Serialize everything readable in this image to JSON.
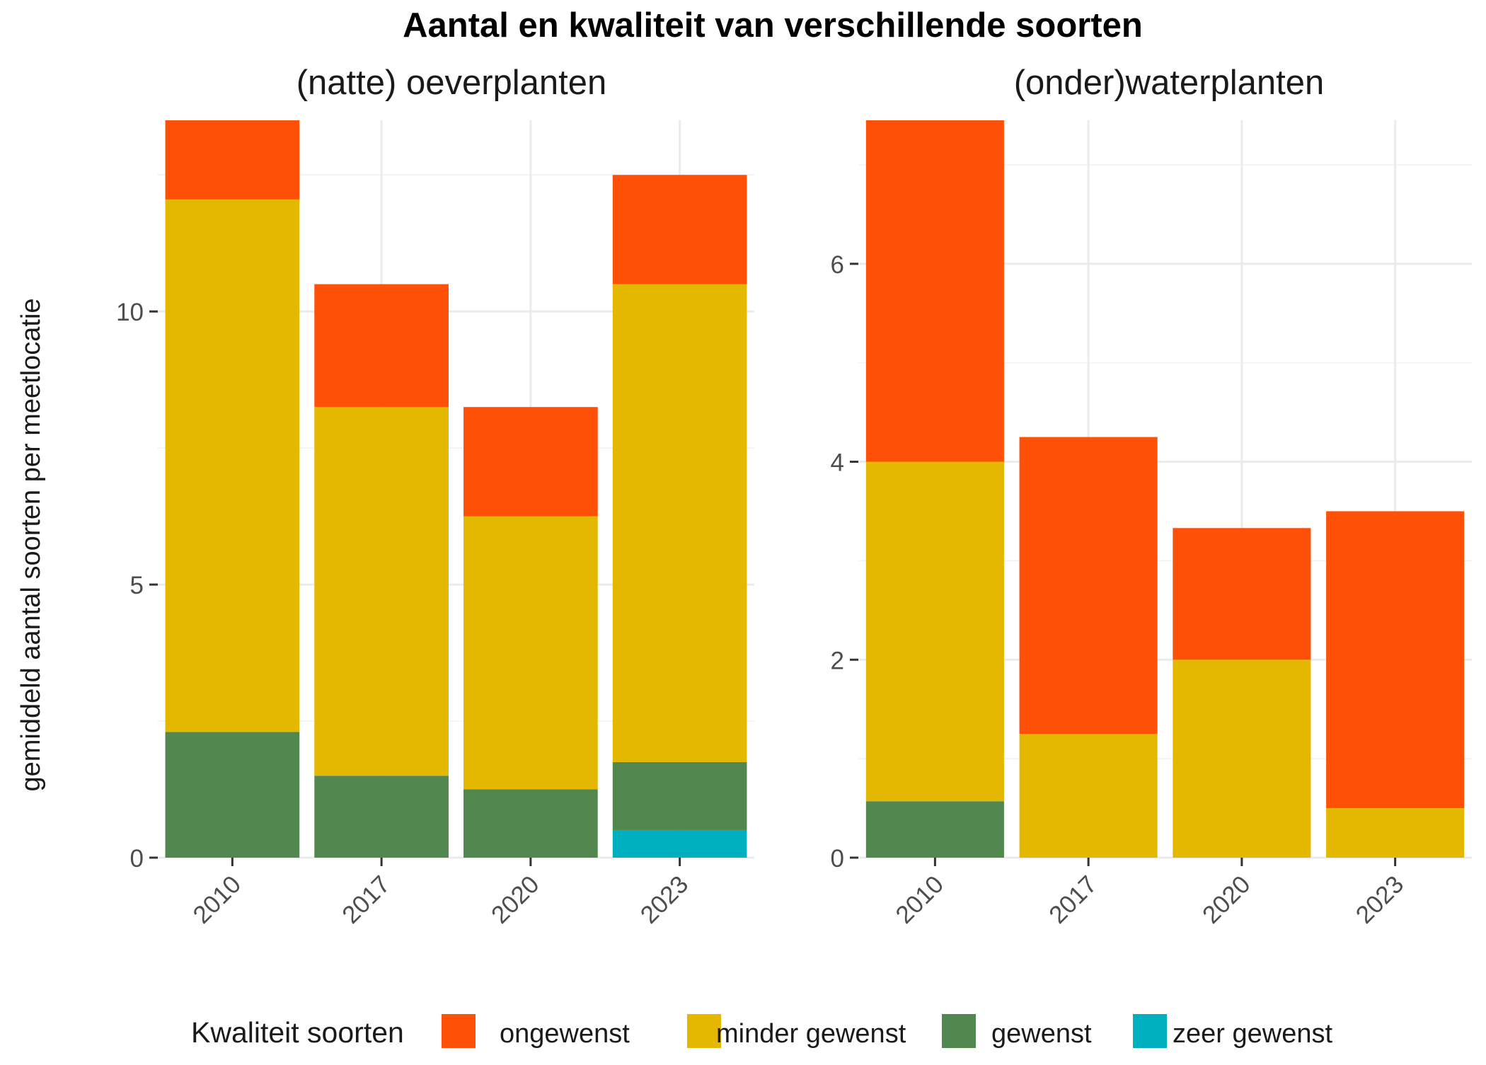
{
  "chart_data": {
    "type": "bar",
    "stacked": true,
    "title": "Aantal en kwaliteit van verschillende soorten",
    "ylabel": "gemiddeld aantal soorten per meetlocatie",
    "xlabel": "",
    "grid": true,
    "legend": {
      "title": "Kwaliteit soorten",
      "position": "bottom",
      "items": [
        {
          "label": "ongewenst",
          "color": "#FF5008"
        },
        {
          "label": "minder gewenst",
          "color": "#E4B800"
        },
        {
          "label": "gewenst",
          "color": "#52884F"
        },
        {
          "label": "zeer gewenst",
          "color": "#00B0BE"
        }
      ]
    },
    "panels": [
      {
        "title": "(natte) oeverplanten",
        "categories": [
          "2010",
          "2017",
          "2020",
          "2023"
        ],
        "ylim": [
          0,
          13.5
        ],
        "yticks": [
          0,
          5,
          10
        ],
        "ytick_labels": [
          "0",
          "5",
          "10"
        ],
        "series": [
          {
            "name": "zeer gewenst",
            "values": [
              0,
              0,
              0,
              0.5
            ]
          },
          {
            "name": "gewenst",
            "values": [
              2.3,
              1.5,
              1.25,
              1.25
            ]
          },
          {
            "name": "minder gewenst",
            "values": [
              9.75,
              6.75,
              5.0,
              8.75
            ]
          },
          {
            "name": "ongewenst",
            "values": [
              1.45,
              2.25,
              2.0,
              2.0
            ]
          }
        ]
      },
      {
        "title": "(onder)waterplanten",
        "categories": [
          "2010",
          "2017",
          "2020",
          "2023"
        ],
        "ylim": [
          0,
          7.45
        ],
        "yticks": [
          0,
          2,
          4,
          6
        ],
        "ytick_labels": [
          "0",
          "2",
          "4",
          "6"
        ],
        "series": [
          {
            "name": "zeer gewenst",
            "values": [
              0,
              0,
              0,
              0
            ]
          },
          {
            "name": "gewenst",
            "values": [
              0.57,
              0,
              0,
              0
            ]
          },
          {
            "name": "minder gewenst",
            "values": [
              3.43,
              1.25,
              2.0,
              0.5
            ]
          },
          {
            "name": "ongewenst",
            "values": [
              3.45,
              3.0,
              1.33,
              3.0
            ]
          }
        ]
      }
    ]
  }
}
